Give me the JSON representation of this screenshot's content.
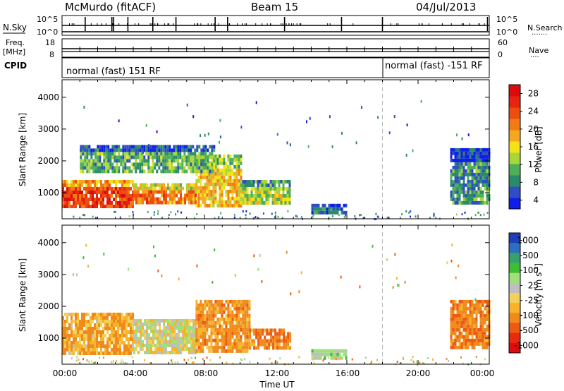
{
  "header": {
    "station": "McMurdo (fitACF)",
    "beam": "Beam 15",
    "date": "04/Jul/2013"
  },
  "top_panels": {
    "left_labels": {
      "nsky": "N.Sky",
      "freq": "Freq.",
      "freq_unit": "[MHz]",
      "cpid": "CPID"
    },
    "right_labels": {
      "nsearch": "N.Search",
      "nave": "Nave"
    },
    "nsky_ticks": [
      "10^5",
      "10^0"
    ],
    "nsearch_ticks": [
      "10^5",
      "10^0"
    ],
    "freq_ticks": [
      "18",
      "8"
    ],
    "nave_ticks": [
      "60",
      "0"
    ],
    "cpid_segments": [
      {
        "text": "normal (fast) 151 RF",
        "start_hour": 0
      },
      {
        "text": "normal (fast) -151 RF",
        "start_hour": 18
      }
    ]
  },
  "chart_data": [
    {
      "type": "heatmap",
      "name": "power",
      "xlabel": "Time UT",
      "ylabel": "Slant Range [km]",
      "xlim": [
        0,
        24
      ],
      "ylim": [
        180,
        4550
      ],
      "x_ticks": [
        "00:00",
        "04:00",
        "08:00",
        "12:00",
        "16:00",
        "20:00",
        "00:00"
      ],
      "y_ticks": [
        1000,
        2000,
        3000,
        4000
      ],
      "colorbar": {
        "label": "Power [dB]",
        "tick_labels": [
          "4",
          "8",
          "12",
          "16",
          "20",
          "24",
          "28"
        ],
        "colors": [
          "#0f1ee8",
          "#2f4ec4",
          "#2b8a69",
          "#4fae5a",
          "#a8d63a",
          "#f2e318",
          "#f5a81f",
          "#f07d14",
          "#ee4d12",
          "#e62410",
          "#dd0c0c"
        ]
      },
      "echo_regions": [
        {
          "t0": 0.0,
          "t1": 4.0,
          "r0": 550,
          "r1": 1400,
          "level": 26
        },
        {
          "t0": 4.0,
          "t1": 7.5,
          "r0": 700,
          "r1": 1300,
          "level": 22
        },
        {
          "t0": 7.5,
          "t1": 10.0,
          "r0": 600,
          "r1": 2200,
          "level": 18
        },
        {
          "t0": 10.0,
          "t1": 12.8,
          "r0": 700,
          "r1": 1400,
          "level": 14
        },
        {
          "t0": 1.0,
          "t1": 8.5,
          "r0": 1700,
          "r1": 2500,
          "level": 10
        },
        {
          "t0": 14.0,
          "t1": 16.0,
          "r0": 350,
          "r1": 650,
          "level": 6
        },
        {
          "t0": 21.8,
          "t1": 24.0,
          "r0": 700,
          "r1": 2400,
          "level": 8
        }
      ]
    },
    {
      "type": "heatmap",
      "name": "velocity",
      "xlabel": "Time UT",
      "ylabel": "Slant Range [km]",
      "xlim": [
        0,
        24
      ],
      "ylim": [
        180,
        4550
      ],
      "x_ticks": [
        "00:00",
        "04:00",
        "08:00",
        "12:00",
        "16:00",
        "20:00",
        "00:00"
      ],
      "y_ticks": [
        1000,
        2000,
        3000,
        4000
      ],
      "colorbar": {
        "label": "Velocity [m s",
        "label_sup": "-1",
        "label_end": "]",
        "tick_labels": [
          "1000",
          "500",
          "100",
          "25",
          "-25",
          "-100",
          "-500",
          "-1000"
        ],
        "colors": [
          "#1f3fb4",
          "#2d6fbe",
          "#38a06f",
          "#3dbe34",
          "#9ee07a",
          "#bfbfbf",
          "#f3d05a",
          "#f5b42a",
          "#f08a1c",
          "#ed5a14",
          "#e82a10",
          "#de0c0c"
        ]
      },
      "echo_regions": [
        {
          "t0": 0.0,
          "t1": 4.0,
          "r0": 550,
          "r1": 1800,
          "level": -100
        },
        {
          "t0": 4.0,
          "t1": 7.5,
          "r0": 600,
          "r1": 1600,
          "level": 50
        },
        {
          "t0": 7.5,
          "t1": 10.5,
          "r0": 600,
          "r1": 2200,
          "level": -150
        },
        {
          "t0": 10.5,
          "t1": 12.8,
          "r0": 700,
          "r1": 1300,
          "level": -200
        },
        {
          "t0": 14.0,
          "t1": 16.0,
          "r0": 350,
          "r1": 650,
          "level": 150
        },
        {
          "t0": 21.8,
          "t1": 24.0,
          "r0": 700,
          "r1": 2200,
          "level": -200
        }
      ]
    }
  ]
}
